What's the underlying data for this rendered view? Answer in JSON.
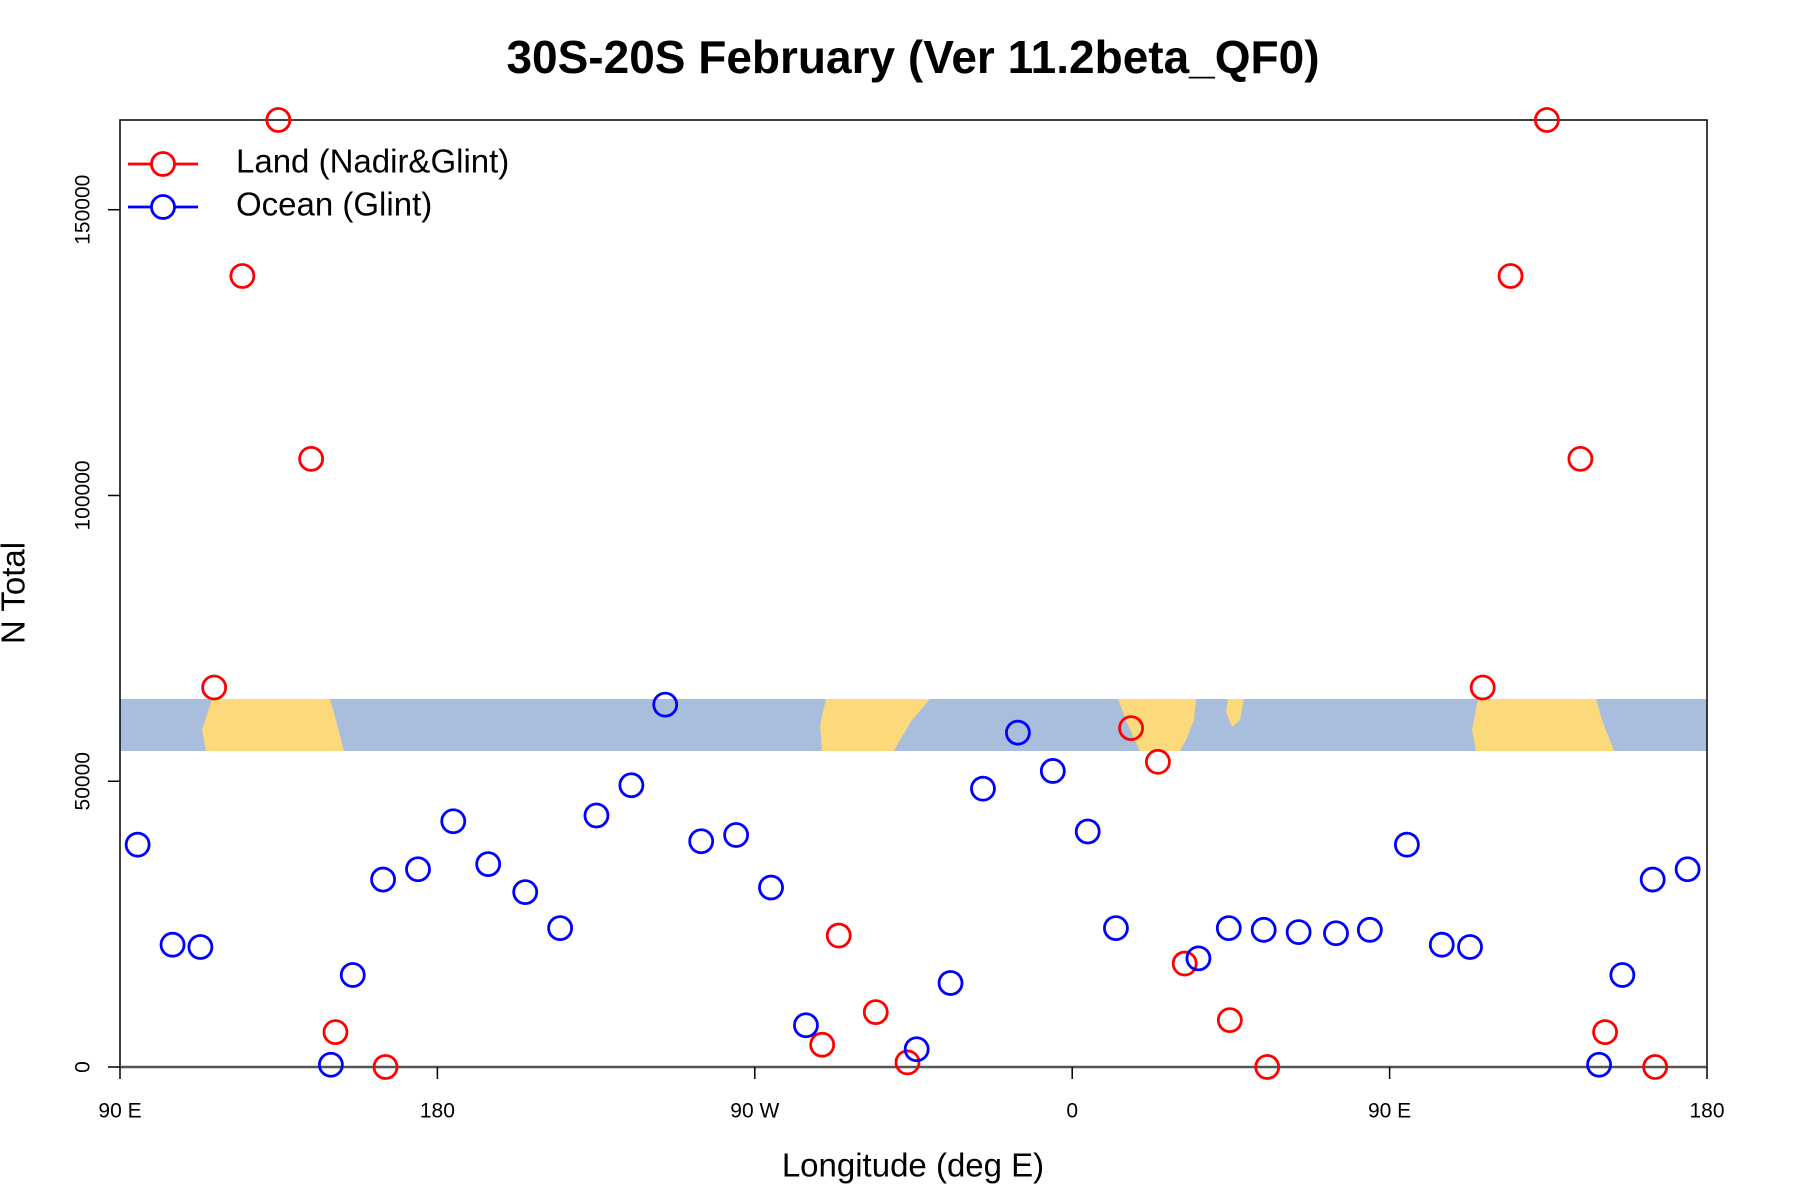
{
  "chart_data": {
    "type": "scatter",
    "title": "30S-20S February (Ver 11.2beta_QF0)",
    "x_label": "Longitude (deg E)",
    "y_label": "N Total",
    "xlim": [
      90,
      540
    ],
    "ylim": [
      0,
      165700
    ],
    "xticks": [
      {
        "value": 90,
        "label": "90 E"
      },
      180,
      {
        "value": 270,
        "label": "90 W"
      },
      {
        "value": 360,
        "label": "0"
      },
      {
        "value": 450,
        "label": "90 E"
      },
      {
        "value": 540,
        "label": "180"
      }
    ],
    "yticks": [
      0,
      50000,
      100000,
      150000
    ],
    "legend_position": "top-left",
    "series": [
      {
        "name": "Land (Nadir&Glint)",
        "color": "#ff0000",
        "x": [
          116.7,
          124.7,
          134.9,
          144.2,
          151.1,
          165.3,
          289.1,
          293.8,
          304.3,
          313.3,
          376.7,
          384.3,
          391.9,
          404.7,
          415.3,
          476.4,
          484.3,
          494.6,
          504.1,
          511.1,
          525.3
        ],
        "values": [
          66400,
          138400,
          165700,
          106400,
          6100,
          0,
          3900,
          23000,
          9600,
          800,
          59300,
          53400,
          18100,
          8200,
          0,
          66400,
          138400,
          165700,
          106400,
          6100,
          0
        ]
      },
      {
        "name": "Ocean (Glint)",
        "color": "#0000ff",
        "x": [
          95.0,
          104.9,
          112.8,
          149.8,
          156.0,
          164.6,
          174.5,
          184.5,
          194.4,
          204.9,
          214.8,
          225.1,
          235.0,
          244.6,
          254.8,
          264.7,
          274.6,
          284.5,
          315.9,
          325.5,
          334.7,
          344.6,
          354.5,
          364.4,
          372.4,
          395.8,
          404.4,
          414.3,
          424.2,
          434.8,
          444.4,
          454.9,
          464.8,
          472.8,
          509.4,
          516.0,
          524.6,
          534.5
        ],
        "values": [
          38900,
          21400,
          21000,
          400,
          16100,
          32800,
          34600,
          43000,
          35500,
          30600,
          24300,
          44000,
          49300,
          63400,
          39500,
          40600,
          31400,
          7300,
          3100,
          14700,
          48700,
          58500,
          51800,
          41200,
          24300,
          19000,
          24300,
          24000,
          23600,
          23400,
          24000,
          38900,
          21400,
          21000,
          400,
          16100,
          32800,
          34600
        ]
      }
    ]
  }
}
